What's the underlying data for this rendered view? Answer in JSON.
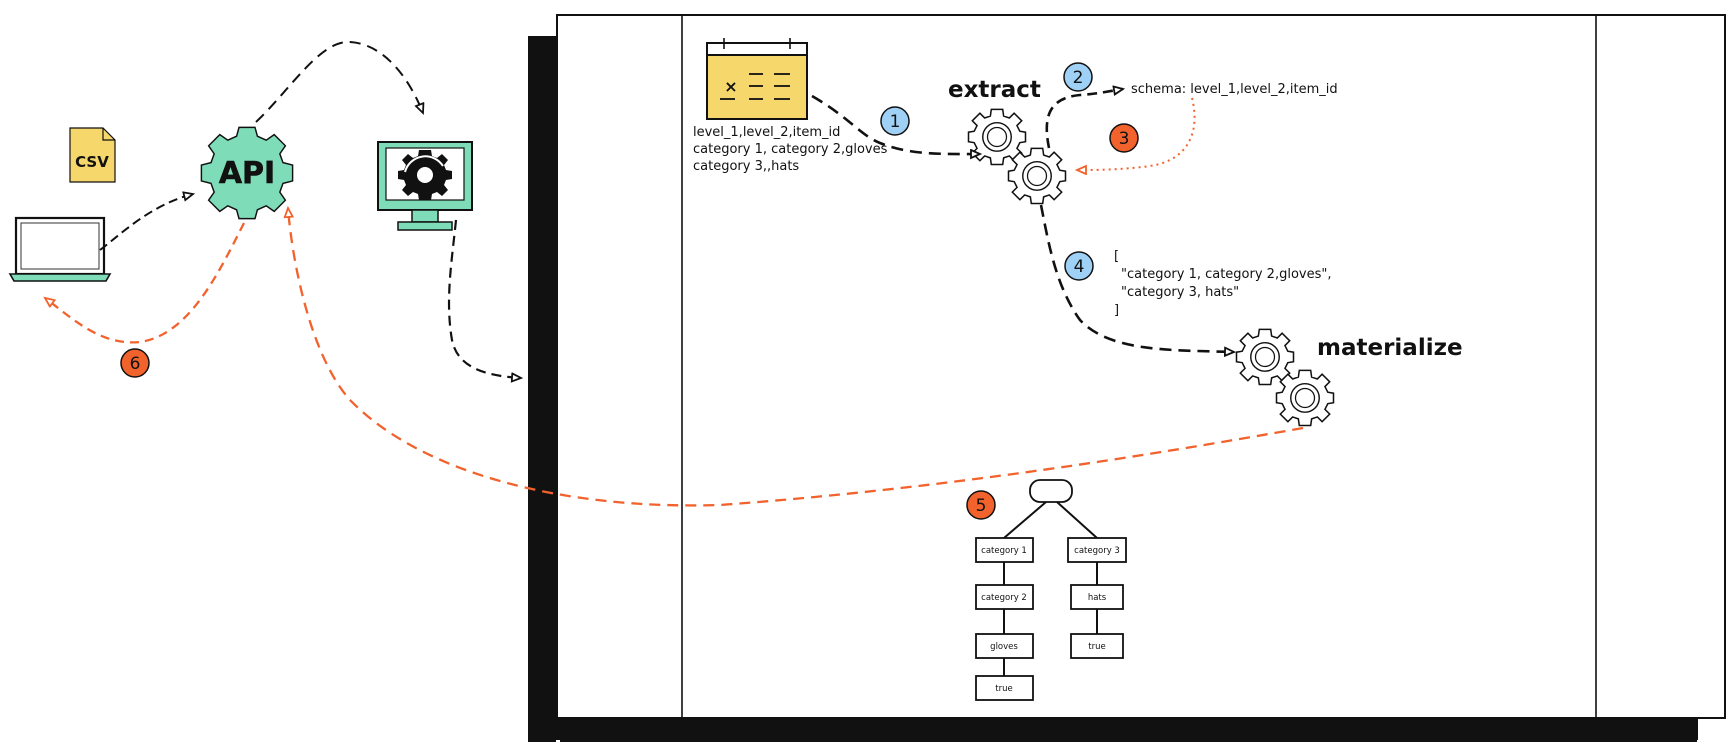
{
  "colors": {
    "green": "#7edcb8",
    "yellow": "#f6d76b",
    "blue": "#9fd0f5",
    "orange": "#f2622c",
    "ink": "#111111"
  },
  "icons": {
    "csv": "csv-file-icon",
    "api": "api-gear-icon",
    "laptop": "laptop-icon",
    "monitor": "monitor-processing-icon",
    "table": "spreadsheet-icon",
    "gears": "gears-icon"
  },
  "left": {
    "csv_label": "CSV",
    "api_label": "API"
  },
  "csv_preview": {
    "lines": [
      "level_1,level_2,item_id",
      "category 1, category 2,gloves",
      "category 3,,hats"
    ]
  },
  "labels": {
    "extract": "extract",
    "materialize": "materialize",
    "schema": "schema: level_1,level_2,item_id"
  },
  "json_output": {
    "lines": [
      "[",
      "\"category 1, category 2,gloves\",",
      "\"category 3, hats\"",
      "]"
    ]
  },
  "steps": {
    "s1": "1",
    "s2": "2",
    "s3": "3",
    "s4": "4",
    "s5": "5",
    "s6": "6"
  },
  "tree": {
    "left": [
      "category 1",
      "category 2",
      "gloves",
      "true"
    ],
    "right": [
      "category 3",
      "hats",
      "true"
    ]
  }
}
